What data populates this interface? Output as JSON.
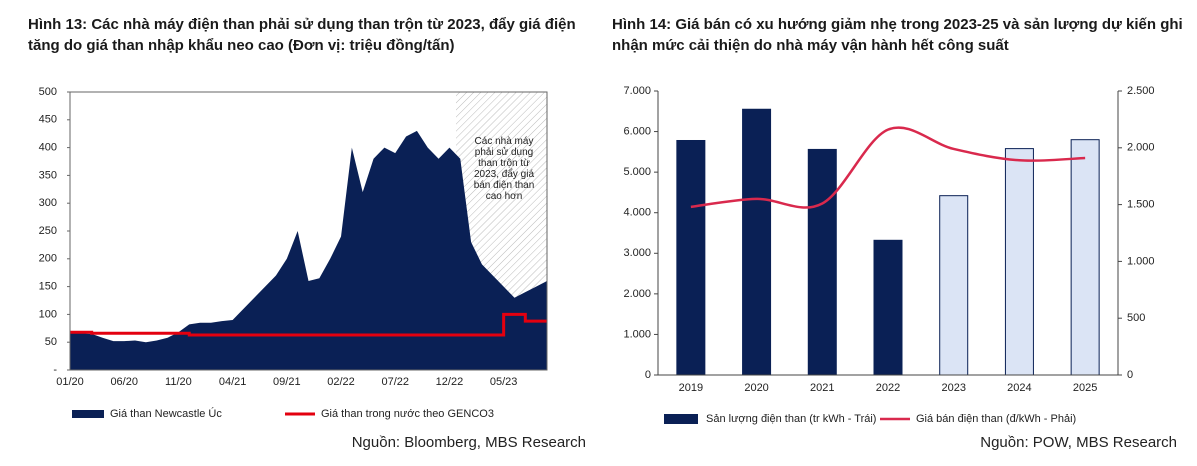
{
  "chart_data": [
    {
      "type": "area_line",
      "title": "Hình 13: Các nhà máy điện than phải sử dụng than trộn từ 2023, đẩy giá điện tăng do giá than nhập khẩu neo cao (Đơn vị: triệu đồng/tấn)",
      "annotation": "Các nhà máy phải sử dụng than trộn từ 2023, đẩy giá bán điện than cao hơn",
      "source": "Nguồn: Bloomberg, MBS Research",
      "categories": [
        "01/20",
        null,
        null,
        null,
        null,
        "06/20",
        null,
        null,
        null,
        null,
        "11/20",
        null,
        null,
        null,
        null,
        "04/21",
        null,
        null,
        null,
        null,
        "09/21",
        null,
        null,
        null,
        null,
        "02/22",
        null,
        null,
        null,
        null,
        "07/22",
        null,
        null,
        null,
        null,
        "12/22",
        null,
        null,
        null,
        null,
        "05/23",
        null,
        null,
        null,
        null
      ],
      "series": [
        {
          "name": "Giá than Newcastle Úc",
          "color": "#0a2055",
          "kind": "area",
          "values": [
            68,
            66,
            65,
            58,
            52,
            52,
            53,
            50,
            53,
            58,
            68,
            82,
            85,
            85,
            88,
            90,
            110,
            130,
            150,
            170,
            200,
            250,
            160,
            165,
            200,
            240,
            400,
            320,
            380,
            400,
            390,
            420,
            430,
            400,
            380,
            400,
            380,
            230,
            190,
            170,
            150,
            130,
            140,
            150,
            160
          ]
        },
        {
          "name": "Giá than trong nước theo GENCO3",
          "color": "#e3000f",
          "kind": "line",
          "values": [
            68,
            68,
            66,
            66,
            66,
            66,
            66,
            66,
            66,
            66,
            66,
            63,
            63,
            63,
            63,
            63,
            63,
            63,
            63,
            63,
            63,
            63,
            63,
            63,
            63,
            63,
            63,
            63,
            63,
            63,
            63,
            63,
            63,
            63,
            63,
            63,
            63,
            63,
            63,
            63,
            100,
            100,
            88,
            88,
            88
          ]
        }
      ],
      "ylim": [
        0,
        500
      ],
      "yticks": [
        {
          "value": 0,
          "label": "-"
        },
        50,
        100,
        150,
        200,
        250,
        300,
        350,
        400,
        450,
        500
      ]
    },
    {
      "type": "bar_line",
      "title": "Hình 14: Giá bán có xu hướng giảm nhẹ trong 2023-25 và sản lượng dự kiến ghi nhận mức cải thiện do nhà máy vận hành hết công suất",
      "source": "Nguồn: POW, MBS Research",
      "categories": [
        "2019",
        "2020",
        "2021",
        "2022",
        "2023",
        "2024",
        "2025"
      ],
      "series": [
        {
          "name": "Sản lượng điện than (tr kWh - Trái)",
          "color": "#0a2055",
          "colors": [
            "#0a2055",
            "#0a2055",
            "#0a2055",
            "#0a2055",
            "#dbe4f5",
            "#dbe4f5",
            "#dbe4f5"
          ],
          "values": [
            5780,
            6550,
            5560,
            3320,
            4420,
            5580,
            5800
          ]
        },
        {
          "name": "Giá bán điện than (đ/kWh - Phải)",
          "color": "#d9294d",
          "axis": "y2",
          "values": [
            1480,
            1550,
            1510,
            2160,
            1990,
            1890,
            1910
          ]
        }
      ],
      "ylim": [
        0,
        7000
      ],
      "yticks": [
        0,
        {
          "value": 1000,
          "label": "1.000"
        },
        {
          "value": 2000,
          "label": "2.000"
        },
        {
          "value": 3000,
          "label": "3.000"
        },
        {
          "value": 4000,
          "label": "4.000"
        },
        {
          "value": 5000,
          "label": "5.000"
        },
        {
          "value": 6000,
          "label": "6.000"
        },
        {
          "value": 7000,
          "label": "7.000"
        }
      ],
      "y2lim": [
        0,
        2500
      ],
      "y2ticks": [
        0,
        500,
        {
          "value": 1000,
          "label": "1.000"
        },
        {
          "value": 1500,
          "label": "1.500"
        },
        {
          "value": 2000,
          "label": "2.000"
        },
        {
          "value": 2500,
          "label": "2.500"
        }
      ]
    }
  ]
}
